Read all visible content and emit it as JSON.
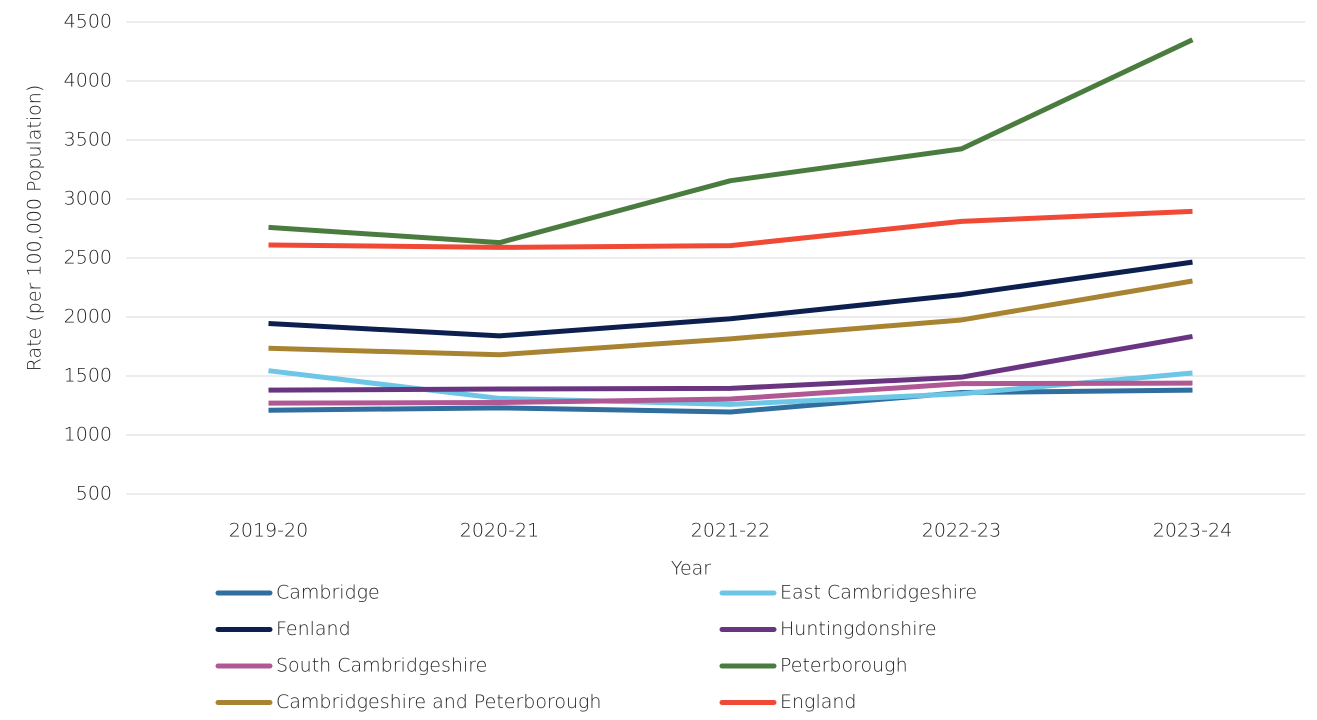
{
  "chart_data": {
    "type": "line",
    "x_label": "Year",
    "y_label": "Rate (per 100,000 Population)",
    "categories": [
      "2019-20",
      "2020-21",
      "2021-22",
      "2022-23",
      "2023-24"
    ],
    "ylim": [
      500,
      4500
    ],
    "yticks": [
      500,
      1000,
      1500,
      2000,
      2500,
      3000,
      3500,
      4000,
      4500
    ],
    "grid": true,
    "series": [
      {
        "name": "Cambridge",
        "color": "#2f6e9e",
        "values": [
          1210,
          1230,
          1195,
          1360,
          1380
        ]
      },
      {
        "name": "East Cambridgeshire",
        "color": "#6ec6e6",
        "values": [
          1545,
          1310,
          1260,
          1350,
          1525
        ]
      },
      {
        "name": "Fenland",
        "color": "#0d1f4f",
        "values": [
          1945,
          1840,
          1985,
          2190,
          2465
        ]
      },
      {
        "name": "Huntingdonshire",
        "color": "#6a3580",
        "values": [
          1380,
          1390,
          1395,
          1490,
          1835
        ]
      },
      {
        "name": "South Cambridgeshire",
        "color": "#b05894",
        "values": [
          1270,
          1275,
          1305,
          1435,
          1440
        ]
      },
      {
        "name": "Peterborough",
        "color": "#4a7c3f",
        "values": [
          2760,
          2630,
          3155,
          3425,
          4350
        ]
      },
      {
        "name": "Cambridgeshire and Peterborough",
        "color": "#a88432",
        "values": [
          1735,
          1680,
          1815,
          1975,
          2305
        ]
      },
      {
        "name": "England",
        "color": "#f04a36",
        "values": [
          2610,
          2590,
          2605,
          2810,
          2895
        ]
      }
    ]
  }
}
